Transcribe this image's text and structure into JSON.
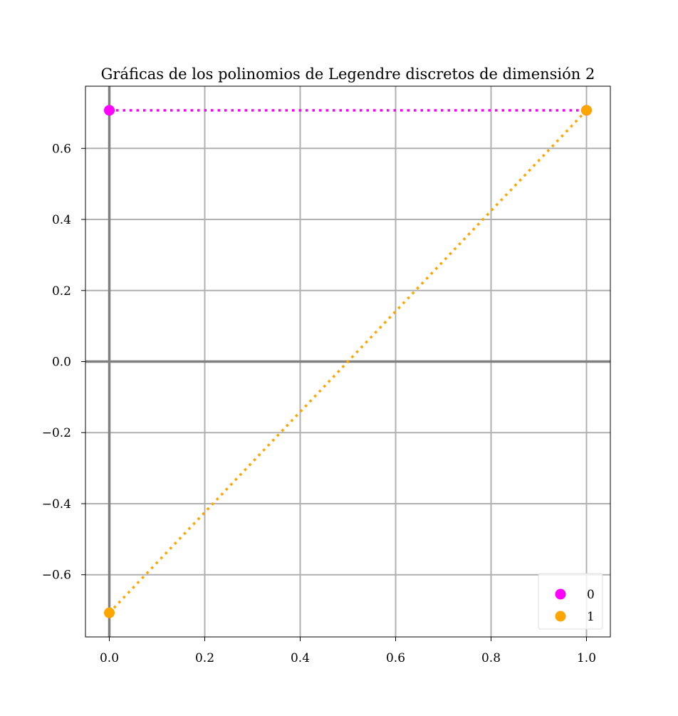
{
  "chart_data": {
    "type": "scatter",
    "title": "Gráficas de los polinomios de Legendre discretos de dimensión 2",
    "xlabel": "",
    "ylabel": "",
    "xlim": [
      -0.05,
      1.05
    ],
    "ylim": [
      -0.775,
      0.775
    ],
    "x_ticks": [
      0.0,
      0.2,
      0.4,
      0.6,
      0.8,
      1.0
    ],
    "x_tick_labels": [
      "0.0",
      "0.2",
      "0.4",
      "0.6",
      "0.8",
      "1.0"
    ],
    "y_ticks": [
      -0.6,
      -0.4,
      -0.2,
      0.0,
      0.2,
      0.4,
      0.6
    ],
    "y_tick_labels": [
      "−0.6",
      "−0.4",
      "−0.2",
      "0.0",
      "0.2",
      "0.4",
      "0.6"
    ],
    "grid": true,
    "reference_lines": {
      "x": 0.0,
      "y": 0.0
    },
    "legend_position": "lower-right",
    "series": [
      {
        "name": "0",
        "color": "#ff00ff",
        "line_style": "dotted",
        "x": [
          0.0,
          1.0
        ],
        "y": [
          0.7071,
          0.7071
        ]
      },
      {
        "name": "1",
        "color": "#ffa500",
        "line_style": "dotted",
        "x": [
          0.0,
          1.0
        ],
        "y": [
          -0.7071,
          0.7071
        ]
      }
    ]
  }
}
